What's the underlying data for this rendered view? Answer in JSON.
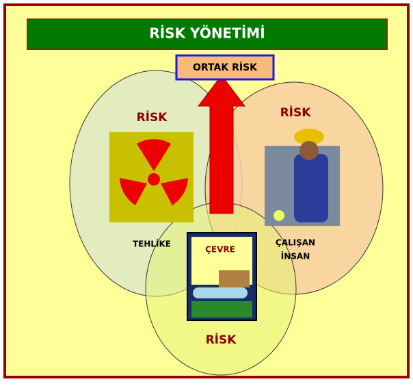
{
  "header": {
    "title": "RİSK YÖNETİMİ"
  },
  "center": {
    "label": "ORTAK RİSK"
  },
  "circles": [
    {
      "risk": "RİSK",
      "label": "TEHLİKE"
    },
    {
      "risk": "RİSK",
      "label": "ÇALIŞAN",
      "label2": "İNSAN"
    },
    {
      "risk": "RİSK",
      "label": "ÇEVRE"
    }
  ]
}
